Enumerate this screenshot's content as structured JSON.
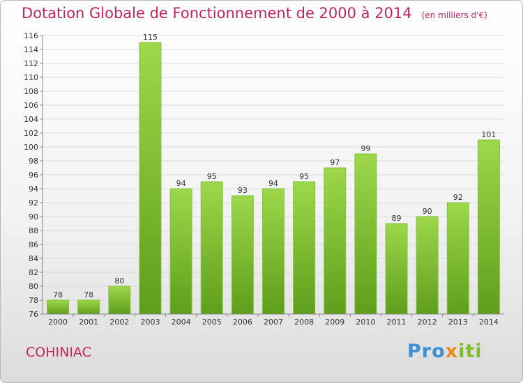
{
  "title": "Dotation Globale de Fonctionnement de 2000 à 2014",
  "unit": "(en milliers d'€)",
  "commune": "COHINIAC",
  "logo": {
    "p1": "Pro",
    "p2": "x",
    "p3": "iti"
  },
  "colors": {
    "bar_top": "#9dd84a",
    "bar_bottom": "#5f9e1c",
    "title": "#c0245e"
  },
  "chart_data": {
    "type": "bar",
    "title": "Dotation Globale de Fonctionnement de 2000 à 2014",
    "categories": [
      "2000",
      "2001",
      "2002",
      "2003",
      "2004",
      "2005",
      "2006",
      "2007",
      "2008",
      "2009",
      "2010",
      "2011",
      "2012",
      "2013",
      "2014"
    ],
    "values": [
      78,
      78,
      80,
      115,
      94,
      95,
      93,
      94,
      95,
      97,
      99,
      89,
      90,
      92,
      101
    ],
    "ylim": [
      76,
      116
    ],
    "yticks": [
      76,
      78,
      80,
      82,
      84,
      86,
      88,
      90,
      92,
      94,
      96,
      98,
      100,
      102,
      104,
      106,
      108,
      110,
      112,
      114,
      116
    ],
    "grid": true
  }
}
